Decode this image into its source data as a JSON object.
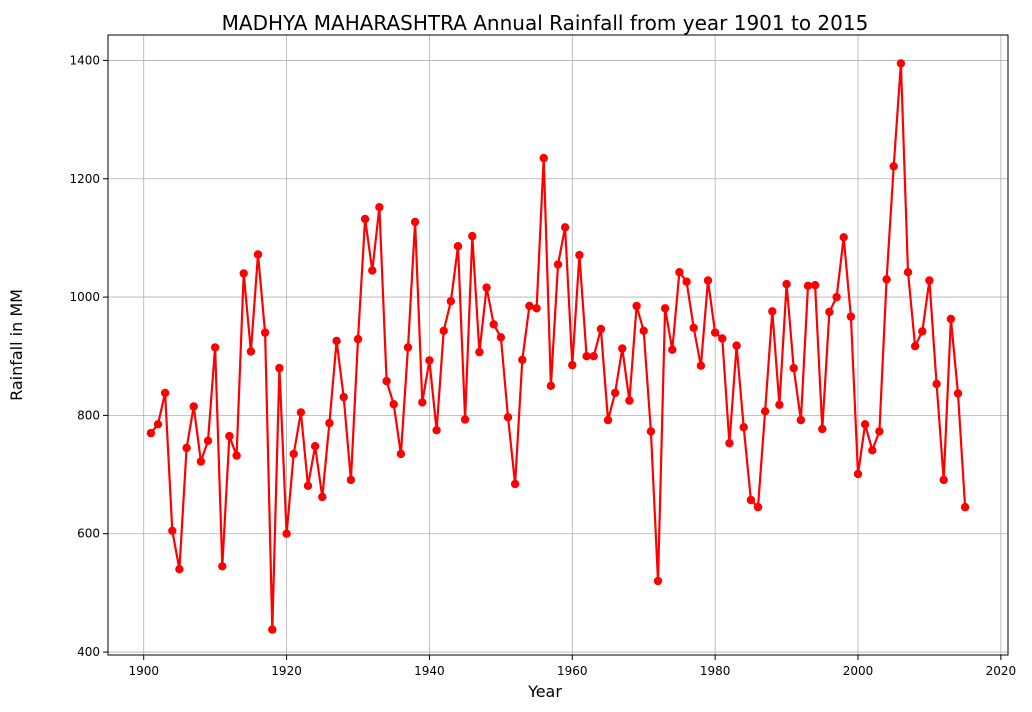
{
  "chart_data": {
    "type": "line",
    "title": "MADHYA MAHARASHTRA Annual Rainfall from year 1901 to 2015",
    "xlabel": "Year",
    "ylabel": "Rainfall in MM",
    "xlim": [
      1895,
      2021
    ],
    "ylim": [
      395,
      1443
    ],
    "xticks": [
      1900,
      1920,
      1940,
      1960,
      1980,
      2000,
      2020
    ],
    "yticks": [
      400,
      600,
      800,
      1000,
      1200,
      1400
    ],
    "grid": true,
    "line_color": "#ff0000",
    "marker": "circle",
    "x": [
      1901,
      1902,
      1903,
      1904,
      1905,
      1906,
      1907,
      1908,
      1909,
      1910,
      1911,
      1912,
      1913,
      1914,
      1915,
      1916,
      1917,
      1918,
      1919,
      1920,
      1921,
      1922,
      1923,
      1924,
      1925,
      1926,
      1927,
      1928,
      1929,
      1930,
      1931,
      1932,
      1933,
      1934,
      1935,
      1936,
      1937,
      1938,
      1939,
      1940,
      1941,
      1942,
      1943,
      1944,
      1945,
      1946,
      1947,
      1948,
      1949,
      1950,
      1951,
      1952,
      1953,
      1954,
      1955,
      1956,
      1957,
      1958,
      1959,
      1960,
      1961,
      1962,
      1963,
      1964,
      1965,
      1966,
      1967,
      1968,
      1969,
      1970,
      1971,
      1972,
      1973,
      1974,
      1975,
      1976,
      1977,
      1978,
      1979,
      1980,
      1981,
      1982,
      1983,
      1984,
      1985,
      1986,
      1987,
      1988,
      1989,
      1990,
      1991,
      1992,
      1993,
      1994,
      1995,
      1996,
      1997,
      1998,
      1999,
      2000,
      2001,
      2002,
      2003,
      2004,
      2005,
      2006,
      2007,
      2008,
      2009,
      2010,
      2011,
      2012,
      2013,
      2014,
      2015
    ],
    "y": [
      770,
      785,
      838,
      605,
      540,
      745,
      815,
      722,
      757,
      915,
      545,
      765,
      732,
      1040,
      908,
      1072,
      940,
      438,
      880,
      600,
      735,
      805,
      681,
      748,
      662,
      787,
      926,
      831,
      691,
      929,
      1132,
      1045,
      1152,
      858,
      819,
      735,
      915,
      1127,
      822,
      893,
      775,
      943,
      993,
      1086,
      793,
      1103,
      907,
      1016,
      954,
      932,
      797,
      684,
      894,
      985,
      981,
      1235,
      850,
      1055,
      1118,
      885,
      1071,
      900,
      900,
      946,
      792,
      838,
      913,
      825,
      985,
      943,
      773,
      520,
      981,
      911,
      1042,
      1026,
      948,
      884,
      1028,
      940,
      930,
      753,
      918,
      780,
      657,
      645,
      807,
      976,
      818,
      1022,
      880,
      792,
      1019,
      1020,
      777,
      975,
      1000,
      1101,
      967,
      701,
      785,
      741,
      773,
      1030,
      1221,
      1395,
      1042,
      917,
      942,
      1028,
      853,
      691,
      963,
      837,
      645
    ]
  }
}
